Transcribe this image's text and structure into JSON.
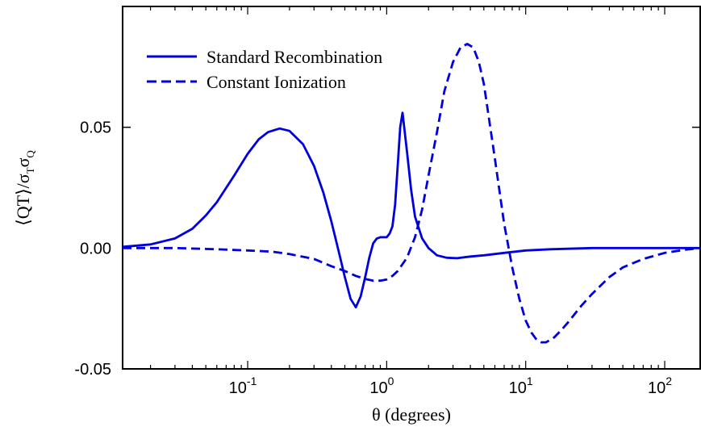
{
  "chart_data": {
    "type": "line",
    "title": "",
    "xlabel": "θ (degrees)",
    "ylabel": "⟨QT⟩/σTσQ",
    "ylabel_parts": {
      "main": "⟨QT⟩/σ",
      "sub1": "T",
      "mid": "σ",
      "sub2": "Q"
    },
    "x_scale": "log",
    "xlim": [
      0.0126,
      180
    ],
    "ylim": [
      -0.05,
      0.1
    ],
    "x_ticks": [
      {
        "value": 0.1,
        "base": "10",
        "exp": "-1"
      },
      {
        "value": 1,
        "base": "10",
        "exp": "0"
      },
      {
        "value": 10,
        "base": "10",
        "exp": "1"
      },
      {
        "value": 100,
        "base": "10",
        "exp": "2"
      }
    ],
    "y_ticks": [
      {
        "value": -0.05,
        "label": "-0.05"
      },
      {
        "value": 0.0,
        "label": "0.00"
      },
      {
        "value": 0.05,
        "label": "0.05"
      }
    ],
    "grid": false,
    "legend_position": "top-left",
    "color": "#0000dd",
    "series": [
      {
        "name": "Standard Recombination",
        "style": "solid",
        "x": [
          0.0126,
          0.02,
          0.03,
          0.04,
          0.05,
          0.06,
          0.08,
          0.1,
          0.12,
          0.14,
          0.17,
          0.2,
          0.25,
          0.3,
          0.35,
          0.4,
          0.45,
          0.5,
          0.55,
          0.6,
          0.65,
          0.7,
          0.75,
          0.8,
          0.85,
          0.9,
          0.95,
          1.0,
          1.05,
          1.1,
          1.15,
          1.2,
          1.25,
          1.3,
          1.4,
          1.5,
          1.6,
          1.8,
          2.0,
          2.3,
          2.7,
          3.2,
          4.0,
          5.0,
          7.0,
          10,
          15,
          20,
          30,
          50,
          80,
          120,
          180
        ],
        "values": [
          0.0005,
          0.0015,
          0.004,
          0.008,
          0.0135,
          0.019,
          0.03,
          0.039,
          0.045,
          0.048,
          0.0495,
          0.0485,
          0.043,
          0.034,
          0.023,
          0.011,
          -0.001,
          -0.012,
          -0.021,
          -0.0245,
          -0.02,
          -0.012,
          -0.004,
          0.002,
          0.004,
          0.0045,
          0.0045,
          0.0045,
          0.006,
          0.009,
          0.018,
          0.034,
          0.05,
          0.056,
          0.04,
          0.024,
          0.013,
          0.004,
          0.0,
          -0.003,
          -0.004,
          -0.0042,
          -0.0035,
          -0.003,
          -0.002,
          -0.001,
          -0.0005,
          -0.0003,
          0.0,
          0.0,
          0.0,
          0.0,
          0.0
        ]
      },
      {
        "name": "Constant Ionization",
        "style": "dashed",
        "x": [
          0.0126,
          0.03,
          0.06,
          0.1,
          0.15,
          0.2,
          0.3,
          0.4,
          0.5,
          0.6,
          0.7,
          0.8,
          0.9,
          1.0,
          1.1,
          1.2,
          1.4,
          1.6,
          1.8,
          2.0,
          2.3,
          2.6,
          3.0,
          3.4,
          3.8,
          4.2,
          4.6,
          5.0,
          5.5,
          6.0,
          7.0,
          8.0,
          9.0,
          10,
          11,
          12,
          13,
          14,
          16,
          18,
          20,
          25,
          30,
          40,
          50,
          70,
          100,
          140,
          180
        ],
        "values": [
          0.0,
          0.0,
          -0.0005,
          -0.001,
          -0.0015,
          -0.0025,
          -0.0045,
          -0.0075,
          -0.0095,
          -0.0115,
          -0.0128,
          -0.0135,
          -0.0135,
          -0.013,
          -0.0115,
          -0.0095,
          -0.004,
          0.0045,
          0.016,
          0.03,
          0.048,
          0.065,
          0.077,
          0.083,
          0.0845,
          0.083,
          0.077,
          0.068,
          0.052,
          0.037,
          0.01,
          -0.008,
          -0.021,
          -0.03,
          -0.035,
          -0.038,
          -0.039,
          -0.039,
          -0.037,
          -0.034,
          -0.031,
          -0.024,
          -0.019,
          -0.012,
          -0.008,
          -0.0045,
          -0.002,
          -0.0007,
          0.0
        ]
      }
    ]
  }
}
